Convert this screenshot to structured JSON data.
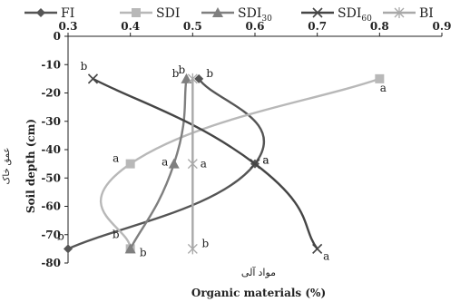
{
  "chart_data": {
    "type": "line",
    "x_axis": {
      "label": "Organic materials (%)",
      "label_secondary": "مواد آلی",
      "min": 0.3,
      "max": 0.9,
      "step": 0.1,
      "tick_labels": [
        "0.3",
        "0.4",
        "0.5",
        "0.6",
        "0.7",
        "0.8",
        "0.9"
      ],
      "position": "top"
    },
    "y_axis": {
      "label": "Soil depth (cm)",
      "label_secondary": "عمق خاک",
      "min": -80,
      "max": 0,
      "step": 10,
      "tick_labels": [
        "0",
        "-10",
        "-20",
        "-30",
        "-40",
        "-50",
        "-60",
        "-70",
        "-80"
      ]
    },
    "legend": {
      "placement": "top"
    },
    "grid": false,
    "series": [
      {
        "name": "FI",
        "name_sub": "",
        "color": "#555555",
        "marker": "diamond",
        "points": [
          {
            "x": 0.51,
            "y": -15,
            "label": "b"
          },
          {
            "x": 0.6,
            "y": -45,
            "label": "a"
          },
          {
            "x": 0.3,
            "y": -75,
            "label": "b"
          }
        ]
      },
      {
        "name": "SDI",
        "name_sub": "",
        "color": "#b8b8b8",
        "marker": "square",
        "points": [
          {
            "x": 0.8,
            "y": -15,
            "label": "a"
          },
          {
            "x": 0.4,
            "y": -45,
            "label": "a"
          },
          {
            "x": 0.4,
            "y": -75,
            "label": "b"
          }
        ]
      },
      {
        "name": "SDI",
        "name_sub": "30",
        "color": "#7f7f7f",
        "marker": "triangle",
        "points": [
          {
            "x": 0.49,
            "y": -15,
            "label": "b"
          },
          {
            "x": 0.47,
            "y": -45,
            "label": "a"
          },
          {
            "x": 0.4,
            "y": -75,
            "label": "b"
          }
        ]
      },
      {
        "name": "SDI",
        "name_sub": "60",
        "color": "#454545",
        "marker": "x",
        "points": [
          {
            "x": 0.34,
            "y": -15,
            "label": "b"
          },
          {
            "x": 0.6,
            "y": -45,
            "label": "a"
          },
          {
            "x": 0.7,
            "y": -75,
            "label": "a"
          }
        ]
      },
      {
        "name": "BI",
        "name_sub": "",
        "color": "#a9a9a9",
        "marker": "star",
        "points": [
          {
            "x": 0.5,
            "y": -15,
            "label": "b"
          },
          {
            "x": 0.5,
            "y": -45,
            "label": "a"
          },
          {
            "x": 0.5,
            "y": -75,
            "label": "b"
          }
        ]
      }
    ]
  }
}
